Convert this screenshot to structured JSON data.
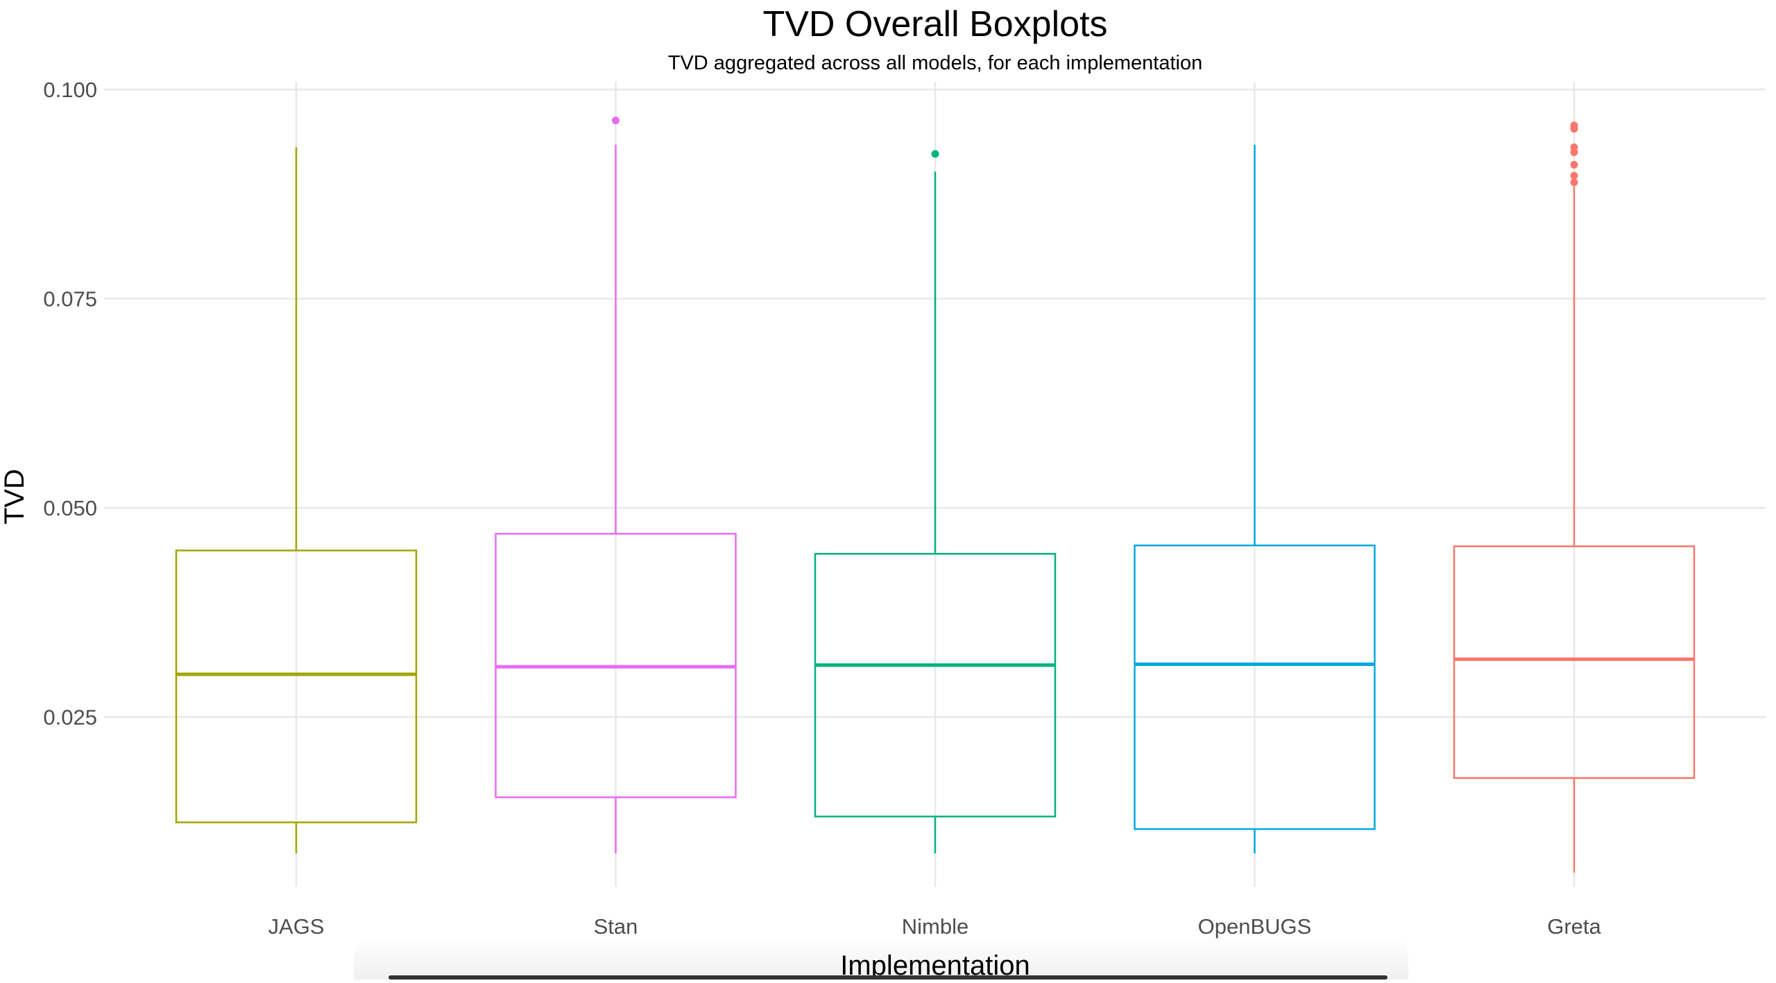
{
  "chart_data": {
    "type": "boxplot",
    "title": "TVD Overall Boxplots",
    "subtitle": "TVD aggregated across all models, for each implementation",
    "xlabel": "Implementation",
    "ylabel": "TVD",
    "ylim": [
      0.0,
      0.1
    ],
    "yticks": [
      "0.025",
      "0.050",
      "0.075",
      "0.100"
    ],
    "ytick_values": [
      0.025,
      0.05,
      0.075,
      0.1
    ],
    "grid": true,
    "categories": [
      "JAGS",
      "Stan",
      "Nimble",
      "OpenBUGS",
      "Greta"
    ],
    "boxes": [
      {
        "name": "JAGS",
        "color": "#a3a500",
        "whisker_low": 0.0087,
        "q1": 0.0124,
        "median": 0.0301,
        "q3": 0.0449,
        "whisker_high": 0.0931,
        "outliers": []
      },
      {
        "name": "Stan",
        "color": "#e76bf3",
        "whisker_low": 0.0087,
        "q1": 0.0154,
        "median": 0.031,
        "q3": 0.0469,
        "whisker_high": 0.0934,
        "outliers": [
          0.0963
        ]
      },
      {
        "name": "Nimble",
        "color": "#00b27f",
        "whisker_low": 0.0087,
        "q1": 0.0131,
        "median": 0.0312,
        "q3": 0.0445,
        "whisker_high": 0.0902,
        "outliers": [
          0.0923
        ]
      },
      {
        "name": "OpenBUGS",
        "color": "#00a9e0",
        "whisker_low": 0.0087,
        "q1": 0.0116,
        "median": 0.0313,
        "q3": 0.0455,
        "whisker_high": 0.0934,
        "outliers": []
      },
      {
        "name": "Greta",
        "color": "#f8766d",
        "whisker_low": 0.0064,
        "q1": 0.0177,
        "median": 0.0319,
        "q3": 0.0454,
        "whisker_high": 0.0884,
        "outliers": [
          0.0889,
          0.0897,
          0.091,
          0.0925,
          0.0931,
          0.0953,
          0.0957
        ]
      }
    ]
  }
}
